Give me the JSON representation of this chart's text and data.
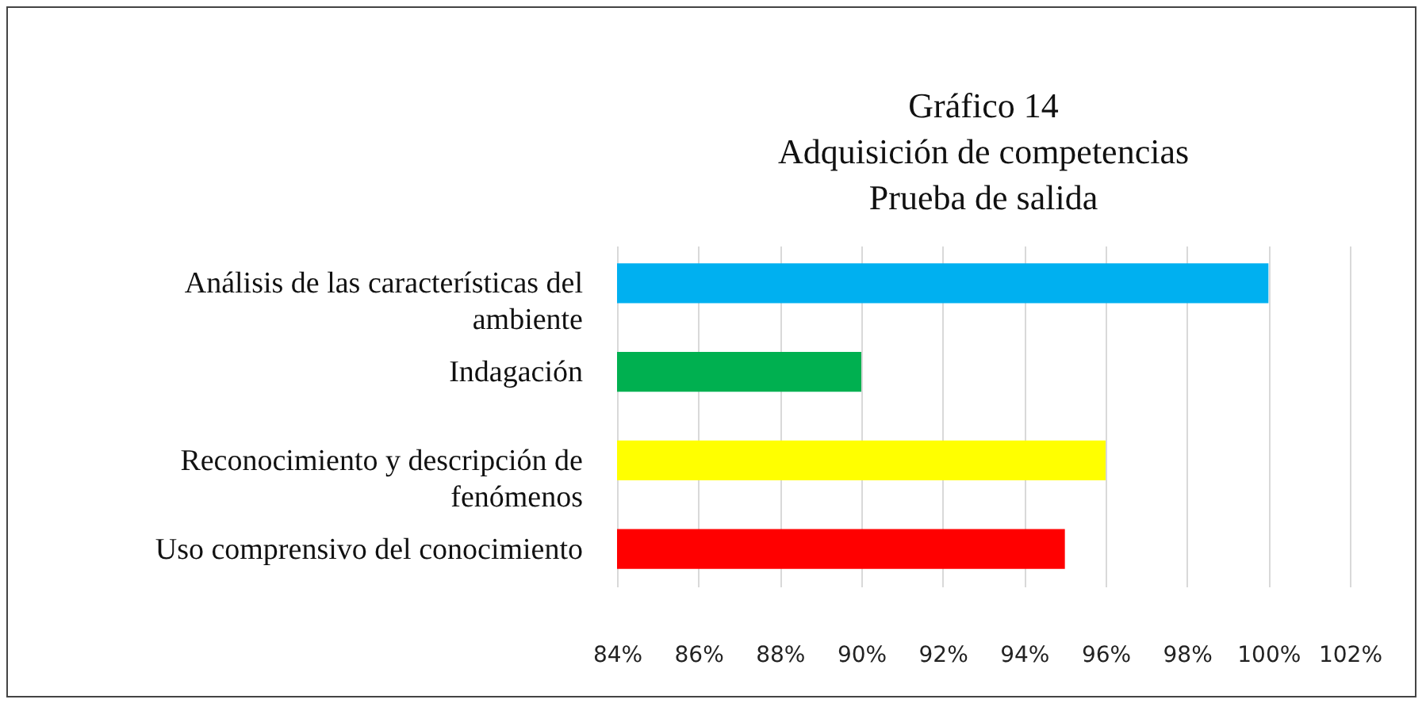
{
  "chart_data": {
    "type": "bar",
    "orientation": "horizontal",
    "title": [
      "Gráfico 14",
      "Adquisición de competencias",
      "Prueba de salida"
    ],
    "categories": [
      "Análisis de las características del ambiente",
      "Indagación",
      "Reconocimiento y descripción de fenómenos",
      "Uso comprensivo del conocimiento"
    ],
    "values": [
      100,
      90,
      96,
      95
    ],
    "colors": [
      "#00b0f0",
      "#00b050",
      "#ffff00",
      "#ff0000"
    ],
    "xlim": [
      84,
      102
    ],
    "xticks": [
      {
        "value": 84,
        "label": "84%"
      },
      {
        "value": 86,
        "label": "86%"
      },
      {
        "value": 88,
        "label": "88%"
      },
      {
        "value": 90,
        "label": "90%"
      },
      {
        "value": 92,
        "label": "92%"
      },
      {
        "value": 94,
        "label": "94%"
      },
      {
        "value": 96,
        "label": "96%"
      },
      {
        "value": 98,
        "label": "98%"
      },
      {
        "value": 100,
        "label": "100%"
      },
      {
        "value": 102,
        "label": "102%"
      }
    ],
    "grid": "x",
    "legend": false
  }
}
